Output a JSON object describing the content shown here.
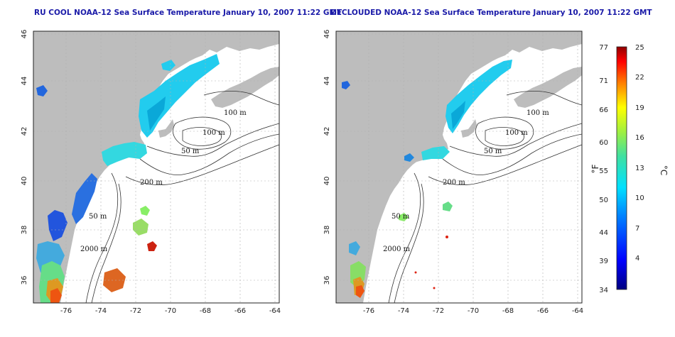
{
  "titles": {
    "left": "RU COOL NOAA-12 Sea Surface Temperature January 10, 2007 11:22 GMT",
    "right": "DECLOUDED NOAA-12 Sea Surface Temperature January 10, 2007 11:22 GMT"
  },
  "map": {
    "lon_ticks": [
      "-76",
      "-74",
      "-72",
      "-70",
      "-68",
      "-66",
      "-64"
    ],
    "lat_ticks": [
      "46",
      "44",
      "42",
      "40",
      "38",
      "36"
    ],
    "contour_labels": [
      "100 m",
      "100 m",
      "50 m",
      "200 m",
      "50 m",
      "2000 m"
    ]
  },
  "colorbar": {
    "fahrenheit_ticks": [
      "77",
      "71",
      "66",
      "60",
      "55",
      "50",
      "44",
      "39",
      "34"
    ],
    "celsius_ticks": [
      "25",
      "22",
      "19",
      "16",
      "13",
      "10",
      "7",
      "4"
    ],
    "fahrenheit_unit": "°F",
    "celsius_unit": "°C"
  },
  "colors": {
    "land": "#bdbdbd",
    "title": "#1a1aa8",
    "grid": "#b0b0b0"
  }
}
